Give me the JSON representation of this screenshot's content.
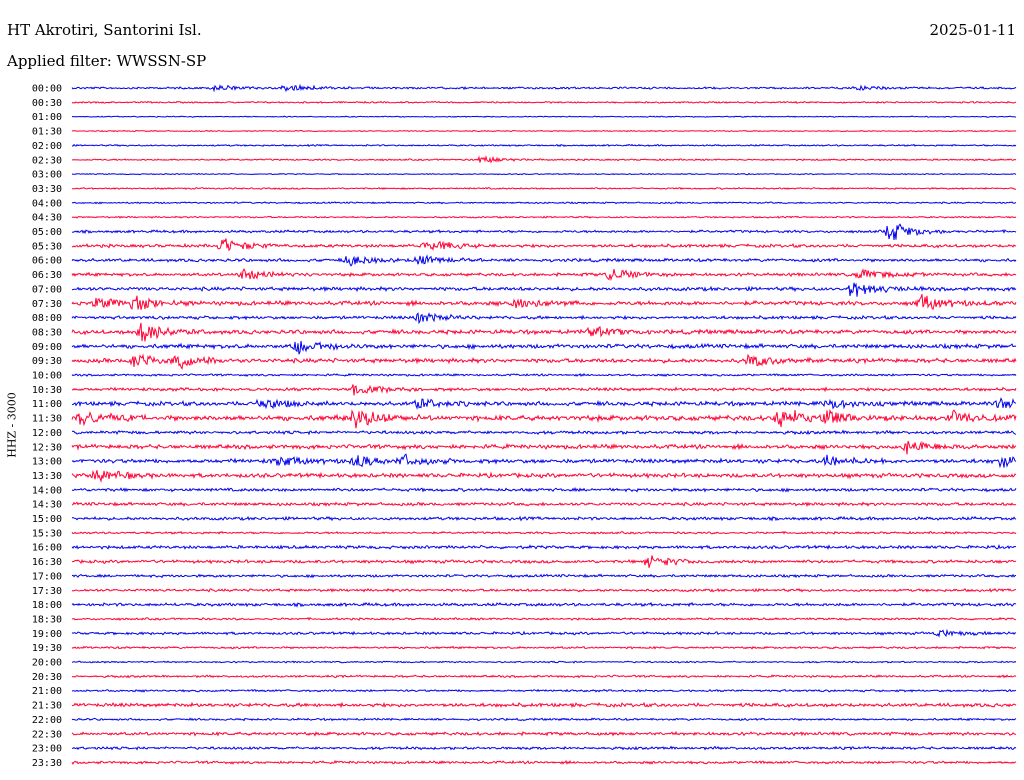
{
  "header": {
    "station": "HT Akrotiri, Santorini Isl.",
    "date": "2025-01-11",
    "filter": "Applied filter: WWSSN-SP"
  },
  "colors": {
    "even_row": "#0000ee",
    "odd_row": "#ff0033"
  },
  "chart_data": {
    "type": "line",
    "title": "HT Akrotiri, Santorini Isl.",
    "subtitle": "Applied filter: WWSSN-SP",
    "ylabel": "HHZ - 3000",
    "xlabel": "",
    "row_interval_minutes": 30,
    "rows": [
      "00:00",
      "00:30",
      "01:00",
      "01:30",
      "02:00",
      "02:30",
      "03:00",
      "03:30",
      "04:00",
      "04:30",
      "05:00",
      "05:30",
      "06:00",
      "06:30",
      "07:00",
      "07:30",
      "08:00",
      "08:30",
      "09:00",
      "09:30",
      "10:00",
      "10:30",
      "11:00",
      "11:30",
      "12:00",
      "12:30",
      "13:00",
      "13:30",
      "14:00",
      "14:30",
      "15:00",
      "15:30",
      "16:00",
      "16:30",
      "17:00",
      "17:30",
      "18:00",
      "18:30",
      "19:00",
      "19:30",
      "20:00",
      "20:30",
      "21:00",
      "21:30",
      "22:00",
      "22:30",
      "23:00",
      "23:30"
    ],
    "row_noise_level": [
      0.2,
      0.15,
      0.1,
      0.1,
      0.15,
      0.15,
      0.1,
      0.15,
      0.15,
      0.15,
      0.25,
      0.3,
      0.3,
      0.3,
      0.35,
      0.4,
      0.3,
      0.4,
      0.4,
      0.4,
      0.2,
      0.3,
      0.4,
      0.5,
      0.3,
      0.4,
      0.4,
      0.4,
      0.3,
      0.3,
      0.3,
      0.2,
      0.3,
      0.3,
      0.25,
      0.25,
      0.3,
      0.2,
      0.25,
      0.2,
      0.15,
      0.2,
      0.2,
      0.35,
      0.2,
      0.3,
      0.25,
      0.25
    ],
    "events": [
      {
        "row": 0,
        "minute": 4.5,
        "amplitude": 1.0
      },
      {
        "row": 0,
        "minute": 6.8,
        "amplitude": 0.9
      },
      {
        "row": 0,
        "minute": 25.0,
        "amplitude": 0.7
      },
      {
        "row": 5,
        "minute": 13.0,
        "amplitude": 1.0
      },
      {
        "row": 10,
        "minute": 26.0,
        "amplitude": 3.0
      },
      {
        "row": 11,
        "minute": 4.8,
        "amplitude": 2.2
      },
      {
        "row": 11,
        "minute": 11.3,
        "amplitude": 1.8
      },
      {
        "row": 12,
        "minute": 8.8,
        "amplitude": 1.5
      },
      {
        "row": 12,
        "minute": 11.0,
        "amplitude": 1.5
      },
      {
        "row": 13,
        "minute": 5.4,
        "amplitude": 1.6
      },
      {
        "row": 13,
        "minute": 17.1,
        "amplitude": 2.0
      },
      {
        "row": 13,
        "minute": 25.0,
        "amplitude": 1.6
      },
      {
        "row": 14,
        "minute": 24.8,
        "amplitude": 2.5
      },
      {
        "row": 15,
        "minute": 0.8,
        "amplitude": 1.6
      },
      {
        "row": 15,
        "minute": 2.0,
        "amplitude": 2.0
      },
      {
        "row": 15,
        "minute": 14.0,
        "amplitude": 1.8
      },
      {
        "row": 15,
        "minute": 27.0,
        "amplitude": 2.2
      },
      {
        "row": 16,
        "minute": 11.0,
        "amplitude": 1.6
      },
      {
        "row": 17,
        "minute": 2.2,
        "amplitude": 3.0
      },
      {
        "row": 17,
        "minute": 16.5,
        "amplitude": 1.4
      },
      {
        "row": 18,
        "minute": 7.2,
        "amplitude": 2.2
      },
      {
        "row": 19,
        "minute": 2.0,
        "amplitude": 2.0
      },
      {
        "row": 19,
        "minute": 3.4,
        "amplitude": 1.8
      },
      {
        "row": 19,
        "minute": 21.5,
        "amplitude": 1.8
      },
      {
        "row": 21,
        "minute": 9.0,
        "amplitude": 1.6
      },
      {
        "row": 22,
        "minute": 6.0,
        "amplitude": 1.6
      },
      {
        "row": 22,
        "minute": 11.0,
        "amplitude": 1.5
      },
      {
        "row": 22,
        "minute": 24.0,
        "amplitude": 1.6
      },
      {
        "row": 22,
        "minute": 29.5,
        "amplitude": 1.5
      },
      {
        "row": 23,
        "minute": 0.3,
        "amplitude": 2.2
      },
      {
        "row": 23,
        "minute": 9.0,
        "amplitude": 3.0
      },
      {
        "row": 23,
        "minute": 22.5,
        "amplitude": 3.0
      },
      {
        "row": 23,
        "minute": 24.0,
        "amplitude": 1.6
      },
      {
        "row": 23,
        "minute": 28.0,
        "amplitude": 1.8
      },
      {
        "row": 25,
        "minute": 26.5,
        "amplitude": 2.0
      },
      {
        "row": 26,
        "minute": 6.5,
        "amplitude": 1.6
      },
      {
        "row": 26,
        "minute": 9.0,
        "amplitude": 1.8
      },
      {
        "row": 26,
        "minute": 10.5,
        "amplitude": 1.4
      },
      {
        "row": 26,
        "minute": 24.0,
        "amplitude": 1.4
      },
      {
        "row": 26,
        "minute": 29.5,
        "amplitude": 1.6
      },
      {
        "row": 27,
        "minute": 0.8,
        "amplitude": 1.8
      },
      {
        "row": 33,
        "minute": 18.3,
        "amplitude": 2.0
      },
      {
        "row": 38,
        "minute": 27.5,
        "amplitude": 0.9
      }
    ]
  }
}
